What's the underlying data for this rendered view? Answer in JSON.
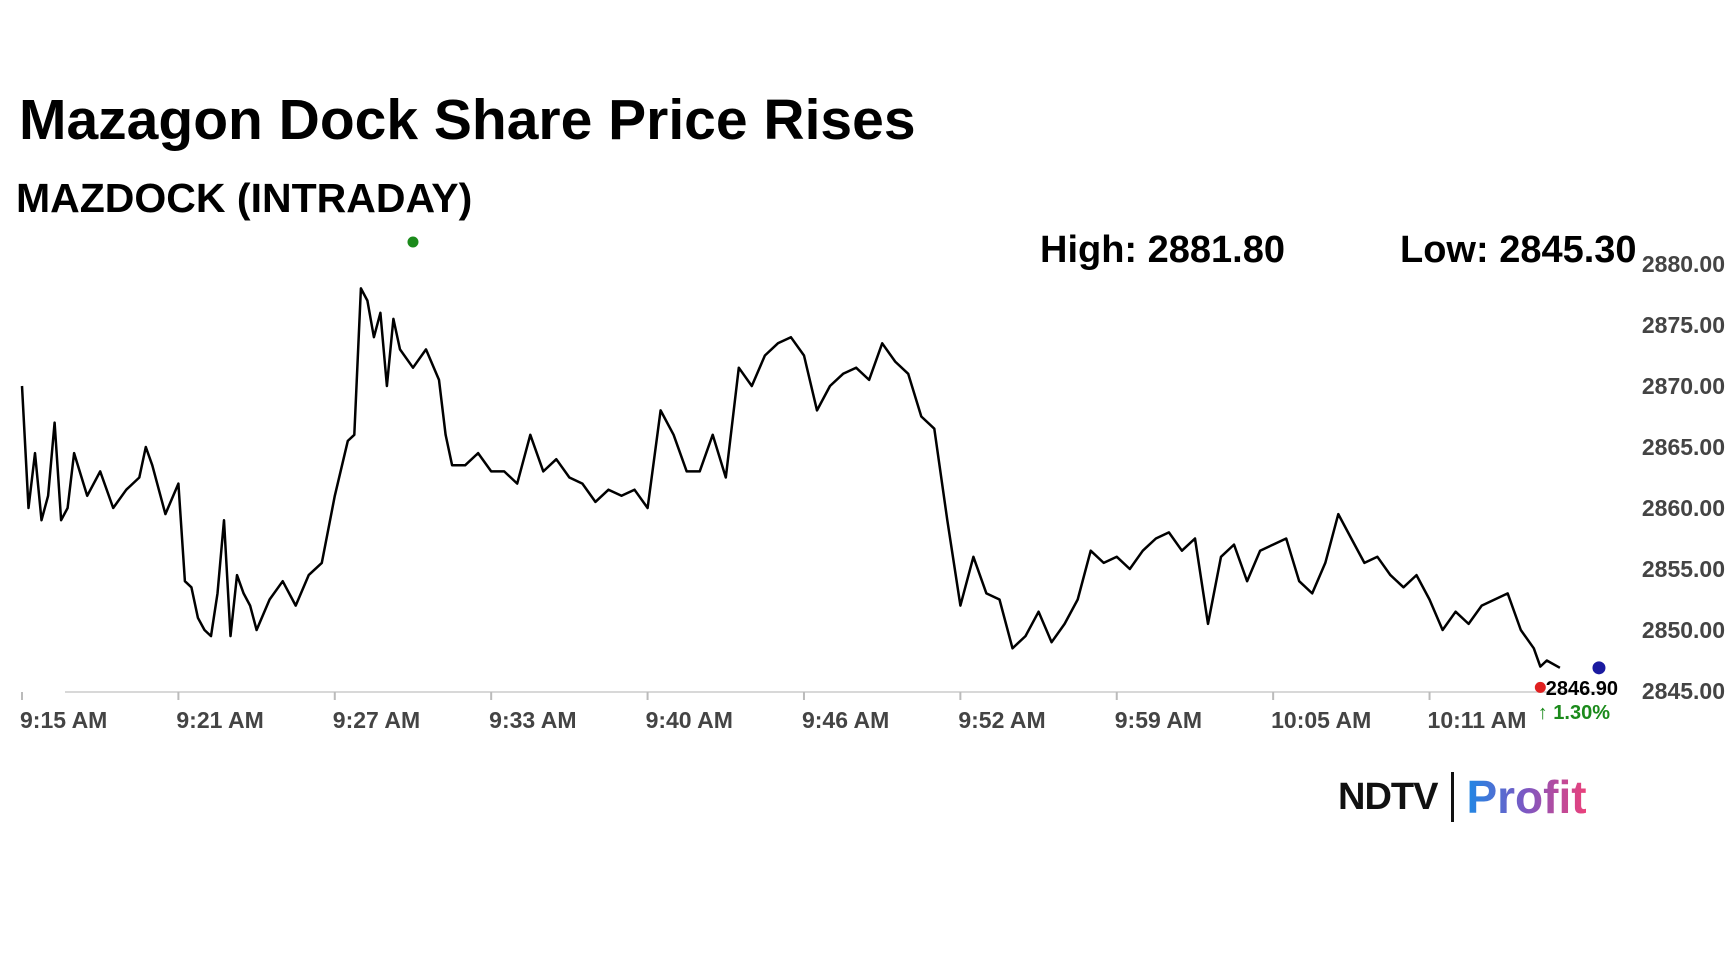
{
  "chart_data": {
    "type": "line",
    "title": "Mazagon Dock Share Price Rises",
    "subtitle": "MAZDOCK (INTRADAY)",
    "high_label": "High: 2881.80",
    "low_label": "Low: 2845.30",
    "x_tick_labels": [
      "9:15 AM",
      "9:21 AM",
      "9:27 AM",
      "9:33 AM",
      "9:40 AM",
      "9:46 AM",
      "9:52 AM",
      "9:59 AM",
      "10:05 AM",
      "10:11 AM"
    ],
    "y_tick_labels": [
      "2880.00",
      "2875.00",
      "2870.00",
      "2865.00",
      "2860.00",
      "2855.00",
      "2850.00",
      "2845.00"
    ],
    "y_ticks": [
      2880,
      2875,
      2870,
      2865,
      2860,
      2855,
      2850,
      2845
    ],
    "ylim": [
      2845,
      2880
    ],
    "x_range_minutes": [
      0,
      61
    ],
    "x_ticks_minutes": [
      0,
      6,
      12,
      18,
      24,
      30,
      36,
      42,
      48,
      54
    ],
    "series": [
      {
        "name": "MAZDOCK",
        "color": "#000000",
        "x_minutes": [
          0.0,
          0.25,
          0.5,
          0.75,
          1.0,
          1.25,
          1.5,
          1.75,
          2.0,
          2.5,
          3.0,
          3.5,
          4.0,
          4.5,
          4.75,
          5.0,
          5.5,
          6.0,
          6.25,
          6.5,
          6.75,
          7.0,
          7.25,
          7.5,
          7.75,
          8.0,
          8.25,
          8.5,
          8.75,
          9.0,
          9.5,
          10.0,
          10.5,
          11.0,
          11.5,
          12.0,
          12.5,
          12.75,
          13.0,
          13.25,
          13.5,
          13.75,
          14.0,
          14.25,
          14.5,
          15.0,
          15.5,
          16.0,
          16.25,
          16.5,
          17.0,
          17.5,
          18.0,
          18.5,
          19.0,
          19.5,
          20.0,
          20.5,
          21.0,
          21.5,
          22.0,
          22.5,
          23.0,
          23.5,
          24.0,
          24.5,
          25.0,
          25.5,
          26.0,
          26.5,
          27.0,
          27.5,
          28.0,
          28.5,
          29.0,
          29.5,
          30.0,
          30.5,
          31.0,
          31.5,
          32.0,
          32.5,
          33.0,
          33.5,
          34.0,
          34.5,
          35.0,
          35.5,
          36.0,
          36.5,
          37.0,
          37.5,
          38.0,
          38.5,
          39.0,
          39.5,
          40.0,
          40.5,
          41.0,
          41.5,
          42.0,
          42.5,
          43.0,
          43.5,
          44.0,
          44.5,
          45.0,
          45.5,
          46.0,
          46.5,
          47.0,
          47.5,
          48.0,
          48.5,
          49.0,
          49.5,
          50.0,
          50.5,
          51.0,
          51.5,
          52.0,
          52.5,
          53.0,
          53.5,
          54.0,
          54.5,
          55.0,
          55.5,
          56.0,
          56.5,
          57.0,
          57.5,
          58.0,
          58.25,
          58.5,
          59.0
        ],
        "y": [
          2870.0,
          2860.0,
          2864.5,
          2859.0,
          2861.0,
          2867.0,
          2859.0,
          2860.0,
          2864.5,
          2861.0,
          2863.0,
          2860.0,
          2861.5,
          2862.5,
          2865.0,
          2863.5,
          2859.5,
          2862.0,
          2854.0,
          2853.5,
          2851.0,
          2850.0,
          2849.5,
          2853.0,
          2859.0,
          2849.5,
          2854.5,
          2853.0,
          2852.0,
          2850.0,
          2852.5,
          2854.0,
          2852.0,
          2854.5,
          2855.5,
          2861.0,
          2865.5,
          2866.0,
          2878.0,
          2877.0,
          2874.0,
          2876.0,
          2870.0,
          2875.5,
          2873.0,
          2871.5,
          2873.0,
          2870.5,
          2866.0,
          2863.5,
          2863.5,
          2864.5,
          2863.0,
          2863.0,
          2862.0,
          2866.0,
          2863.0,
          2864.0,
          2862.5,
          2862.0,
          2860.5,
          2861.5,
          2861.0,
          2861.5,
          2860.0,
          2868.0,
          2866.0,
          2863.0,
          2863.0,
          2866.0,
          2862.5,
          2871.5,
          2870.0,
          2872.5,
          2873.5,
          2874.0,
          2872.5,
          2868.0,
          2870.0,
          2871.0,
          2871.5,
          2870.5,
          2873.5,
          2872.0,
          2871.0,
          2867.5,
          2866.5,
          2859.0,
          2852.0,
          2856.0,
          2853.0,
          2852.5,
          2848.5,
          2849.5,
          2851.5,
          2849.0,
          2850.5,
          2852.5,
          2856.5,
          2855.5,
          2856.0,
          2855.0,
          2856.5,
          2857.5,
          2858.0,
          2856.5,
          2857.5,
          2850.5,
          2856.0,
          2857.0,
          2854.0,
          2856.5,
          2857.0,
          2857.5,
          2854.0,
          2853.0,
          2855.5,
          2859.5,
          2857.5,
          2855.5,
          2856.0,
          2854.5,
          2853.5,
          2854.5,
          2852.5,
          2850.0,
          2851.5,
          2850.5,
          2852.0,
          2852.5,
          2853.0,
          2850.0,
          2848.5,
          2847.0,
          2847.5,
          2846.9
        ]
      }
    ],
    "high_point": {
      "x_minutes": 15,
      "value": 2881.8,
      "color": "#1b8a1b"
    },
    "low_point": {
      "x_minutes": 58.25,
      "value": 2845.3,
      "color": "#e02020"
    },
    "last_point": {
      "x_minutes": 60.5,
      "value": 2846.9,
      "color": "#1a1aa0"
    },
    "last_price_label": "2846.90",
    "change_label": "↑ 1.30%",
    "change_color": "#1b8a1b",
    "grid": false
  },
  "logo": {
    "ndtv": "NDTV",
    "profit": "Profit"
  }
}
